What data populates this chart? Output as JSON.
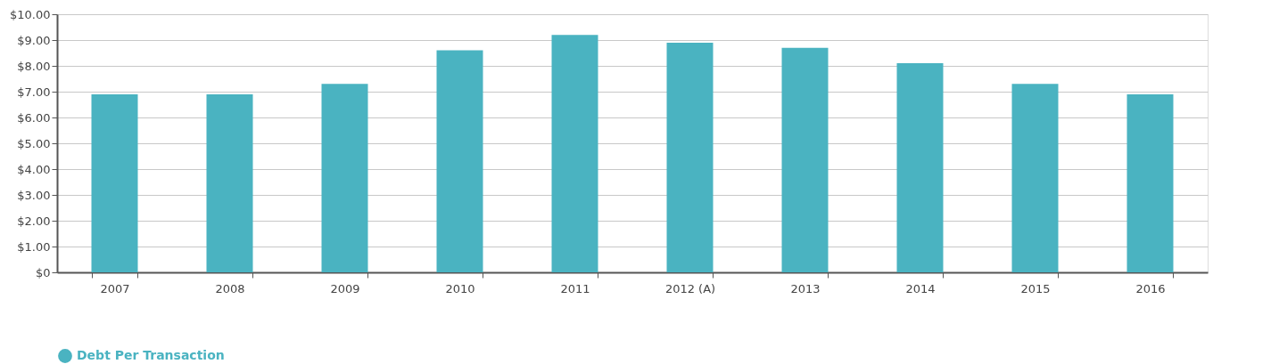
{
  "chart_data": {
    "type": "bar",
    "categories": [
      "2007",
      "2008",
      "2009",
      "2010",
      "2011",
      "2012 (A)",
      "2013",
      "2014",
      "2015",
      "2016"
    ],
    "series": [
      {
        "name": "Debt Per Transaction",
        "color": "#4ab3c1",
        "values": [
          6.9,
          6.9,
          7.3,
          8.6,
          9.2,
          8.9,
          8.7,
          8.1,
          7.3,
          6.9
        ]
      }
    ],
    "ylim": [
      0,
      10
    ],
    "yticks": [
      {
        "value": 0,
        "label": "$0"
      },
      {
        "value": 1,
        "label": "$1.00"
      },
      {
        "value": 2,
        "label": "$2.00"
      },
      {
        "value": 3,
        "label": "$3.00"
      },
      {
        "value": 4,
        "label": "$4.00"
      },
      {
        "value": 5,
        "label": "$5.00"
      },
      {
        "value": 6,
        "label": "$6.00"
      },
      {
        "value": 7,
        "label": "$7.00"
      },
      {
        "value": 8,
        "label": "$8.00"
      },
      {
        "value": 9,
        "label": "$9.00"
      },
      {
        "value": 10,
        "label": "$10.00"
      }
    ],
    "grid": "y",
    "legend": "bottom"
  }
}
